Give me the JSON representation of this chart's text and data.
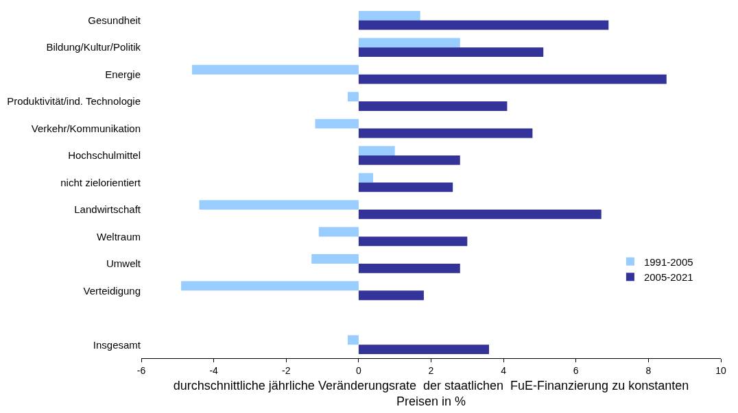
{
  "chart_data": {
    "type": "bar",
    "orientation": "horizontal",
    "xlabel": "durchschnittliche jährliche Veränderungsrate  der staatlichen  FuE-Finanzierung zu konstanten Preisen in %",
    "categories": [
      "Gesundheit",
      "Bildung/Kultur/Politik",
      "Energie",
      "Produktivität/ind. Technologie",
      "Verkehr/Kommunikation",
      "Hochschulmittel",
      "nicht zielorientiert",
      "Landwirtschaft",
      "Weltraum",
      "Umwelt",
      "Verteidigung",
      null,
      "Insgesamt"
    ],
    "series": [
      {
        "name": "1991-2005",
        "color": "#99ccff",
        "values": [
          1.7,
          2.8,
          -4.6,
          -0.3,
          -1.2,
          1.0,
          0.4,
          -4.4,
          -1.1,
          -1.3,
          -4.9,
          null,
          -0.3
        ]
      },
      {
        "name": "2005-2021",
        "color": "#333399",
        "values": [
          6.9,
          5.1,
          8.5,
          4.1,
          4.8,
          2.8,
          2.6,
          6.7,
          3.0,
          2.8,
          1.8,
          null,
          3.6
        ]
      }
    ],
    "xlim": [
      -6,
      10
    ],
    "xticks": [
      -6,
      -4,
      -2,
      0,
      2,
      4,
      6,
      8,
      10
    ],
    "grid": false,
    "legend": "bottom right"
  }
}
